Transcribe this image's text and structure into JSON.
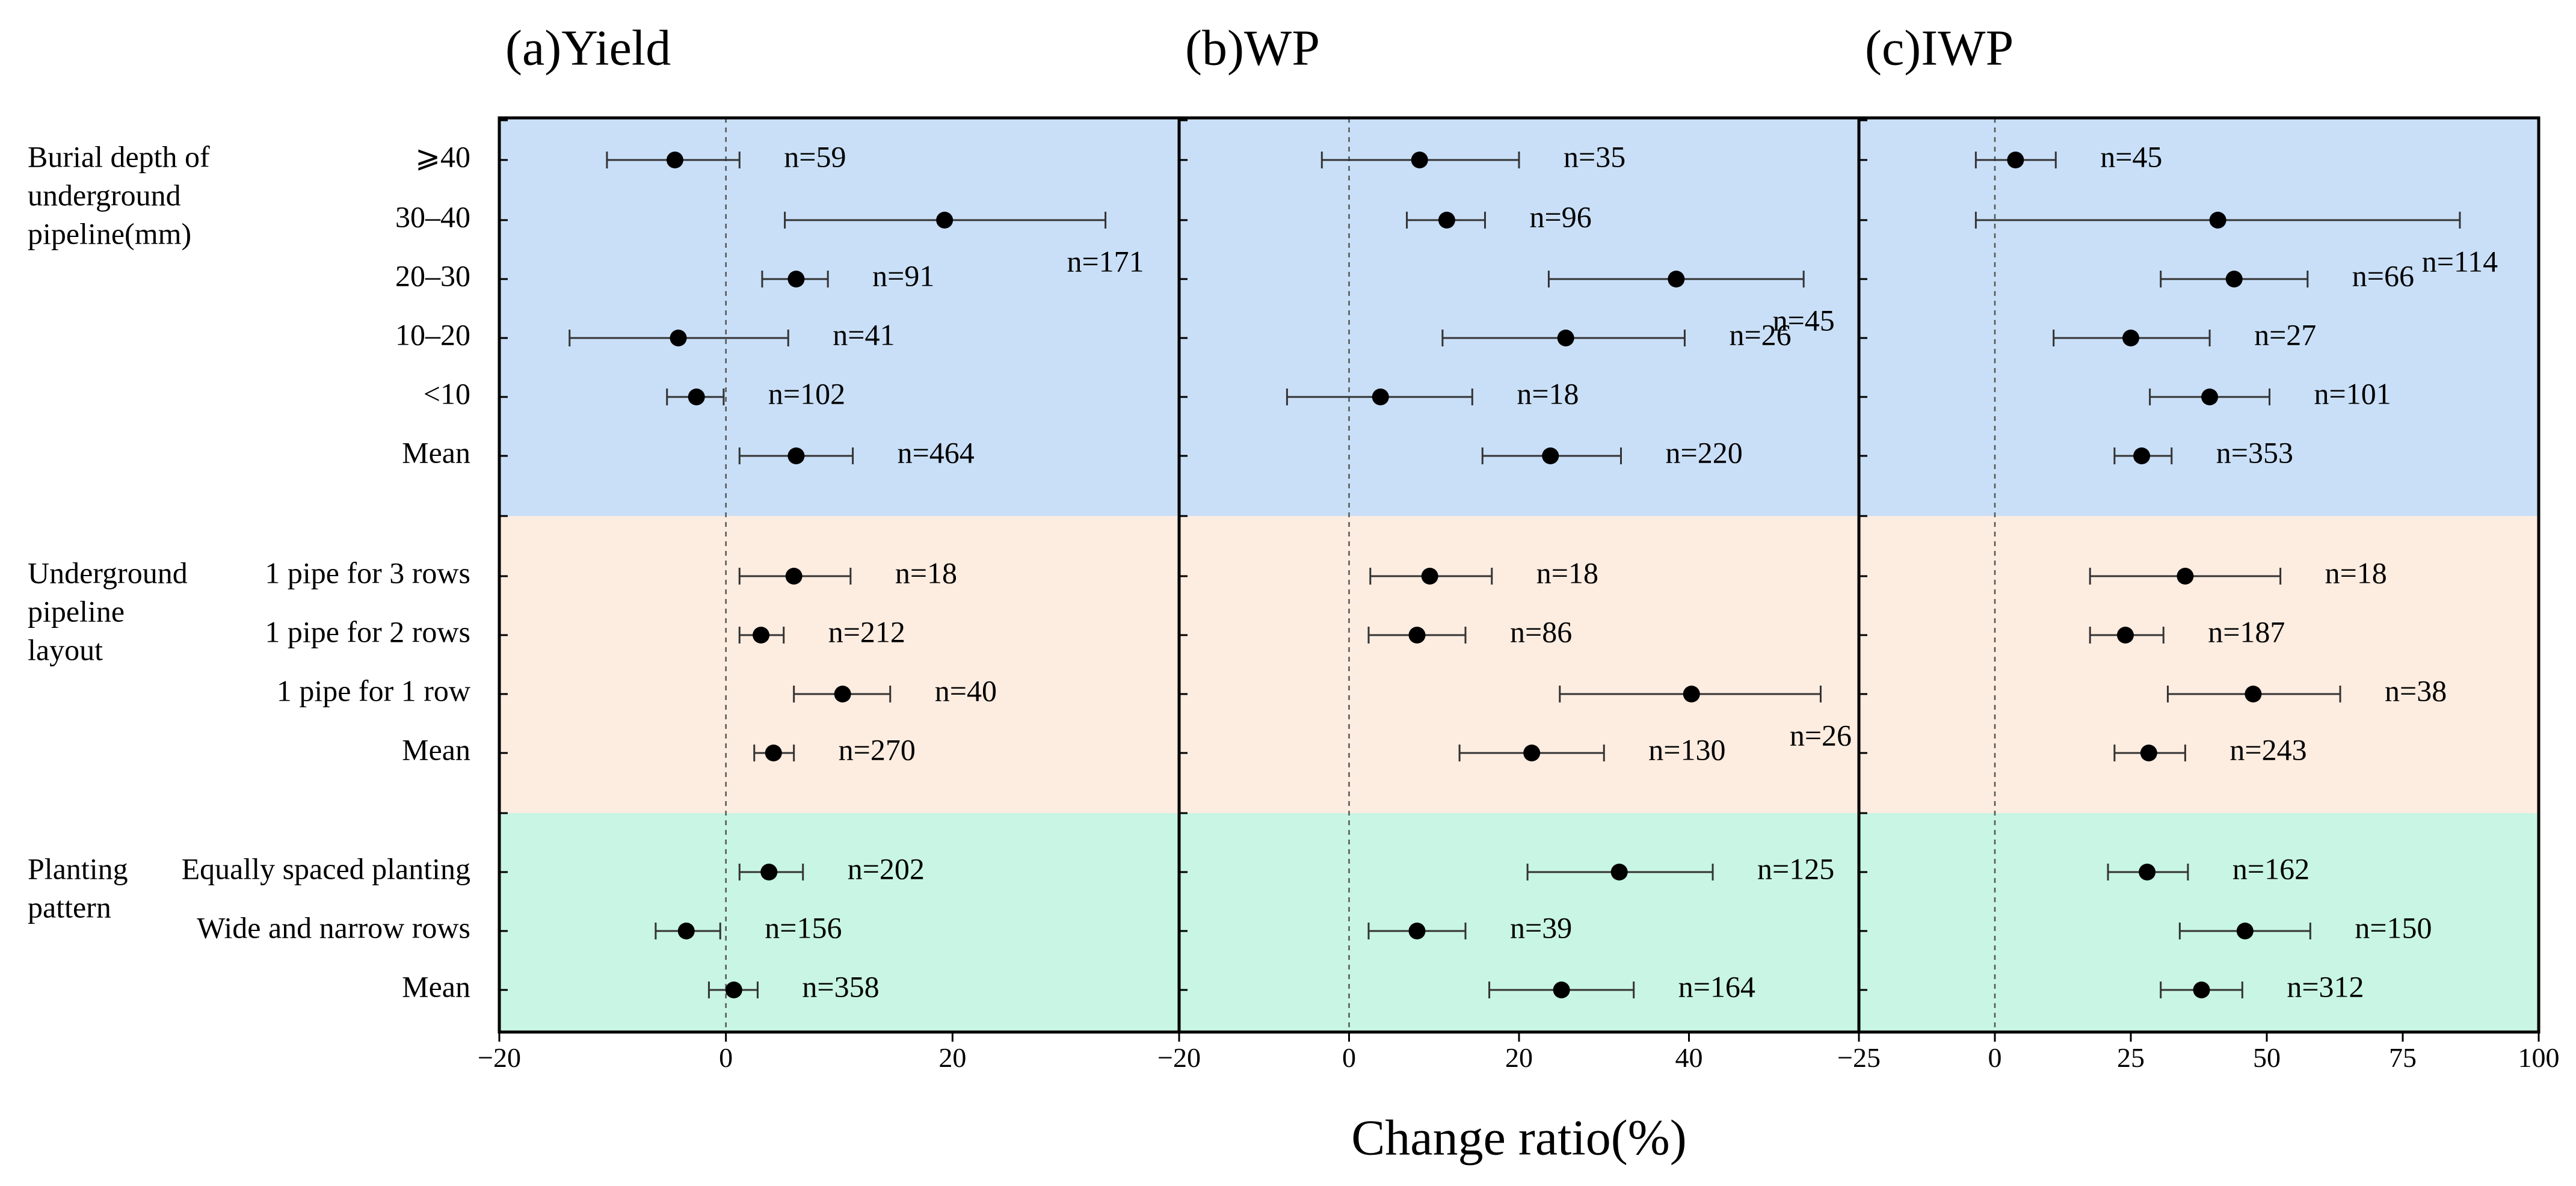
{
  "chart_data": {
    "type": "forest",
    "xlabel": "Change ratio(%)",
    "groups": [
      {
        "key": "burial",
        "label_lines": [
          "Burial depth of",
          "underground",
          "pipeline(mm)"
        ],
        "color": "#c9dff7",
        "rows": [
          "⩾40",
          "30–40",
          "20–30",
          "10–20",
          "<10",
          "Mean"
        ]
      },
      {
        "key": "layout",
        "label_lines": [
          "Underground",
          "pipeline",
          "layout"
        ],
        "color": "#fdece0",
        "rows": [
          "1 pipe for 3 rows",
          "1 pipe for 2 rows",
          "1 pipe for 1 row",
          "Mean"
        ]
      },
      {
        "key": "pattern",
        "label_lines": [
          "Planting",
          "pattern"
        ],
        "color": "#c8f5e4",
        "rows": [
          "Equally spaced planting",
          "Wide and narrow rows",
          "Mean"
        ]
      }
    ],
    "panels": [
      {
        "title": "(a)Yield",
        "xlim": [
          -20,
          40
        ],
        "ticks": [
          -20,
          0,
          20
        ],
        "tick_labels": [
          "−20",
          "0",
          "20"
        ],
        "points": [
          {
            "est": -4.5,
            "lo": -10.5,
            "hi": 1.2,
            "n": "n=59"
          },
          {
            "est": 19.3,
            "lo": 5.2,
            "hi": 33.5,
            "n": "n=171"
          },
          {
            "est": 6.2,
            "lo": 3.2,
            "hi": 9.0,
            "n": "n=91"
          },
          {
            "est": -4.2,
            "lo": -13.8,
            "hi": 5.5,
            "n": "n=41"
          },
          {
            "est": -2.6,
            "lo": -5.2,
            "hi": -0.2,
            "n": "n=102"
          },
          {
            "est": 6.2,
            "lo": 1.2,
            "hi": 11.2,
            "n": "n=464"
          },
          {
            "est": 6.0,
            "lo": 1.2,
            "hi": 11.0,
            "n": "n=18"
          },
          {
            "est": 3.1,
            "lo": 1.2,
            "hi": 5.1,
            "n": "n=212"
          },
          {
            "est": 10.3,
            "lo": 6.0,
            "hi": 14.5,
            "n": "n=40"
          },
          {
            "est": 4.2,
            "lo": 2.5,
            "hi": 6.0,
            "n": "n=270"
          },
          {
            "est": 3.8,
            "lo": 1.2,
            "hi": 6.8,
            "n": "n=202"
          },
          {
            "est": -3.5,
            "lo": -6.2,
            "hi": -0.5,
            "n": "n=156"
          },
          {
            "est": 0.7,
            "lo": -1.5,
            "hi": 2.8,
            "n": "n=358"
          }
        ]
      },
      {
        "title": "(b)WP",
        "xlim": [
          -20,
          60
        ],
        "ticks": [
          -20,
          0,
          20,
          40
        ],
        "tick_labels": [
          "−20",
          "0",
          "20",
          "40"
        ],
        "points": [
          {
            "est": 8.3,
            "lo": -3.2,
            "hi": 20.0,
            "n": "n=35"
          },
          {
            "est": 11.5,
            "lo": 6.8,
            "hi": 16.0,
            "n": "n=96"
          },
          {
            "est": 38.5,
            "lo": 23.5,
            "hi": 53.5,
            "n": "n=45"
          },
          {
            "est": 25.5,
            "lo": 11.0,
            "hi": 39.5,
            "n": "n=26"
          },
          {
            "est": 3.7,
            "lo": -7.3,
            "hi": 14.5,
            "n": "n=18"
          },
          {
            "est": 23.7,
            "lo": 15.7,
            "hi": 32.0,
            "n": "n=220"
          },
          {
            "est": 9.5,
            "lo": 2.5,
            "hi": 16.8,
            "n": "n=18"
          },
          {
            "est": 8.0,
            "lo": 2.3,
            "hi": 13.7,
            "n": "n=86"
          },
          {
            "est": 40.3,
            "lo": 24.8,
            "hi": 55.5,
            "n": "n=26"
          },
          {
            "est": 21.5,
            "lo": 13.0,
            "hi": 30.0,
            "n": "n=130"
          },
          {
            "est": 31.8,
            "lo": 21.0,
            "hi": 42.8,
            "n": "n=125"
          },
          {
            "est": 8.0,
            "lo": 2.3,
            "hi": 13.7,
            "n": "n=39"
          },
          {
            "est": 25.0,
            "lo": 16.5,
            "hi": 33.5,
            "n": "n=164"
          }
        ]
      },
      {
        "title": "(c)IWP",
        "xlim": [
          -25,
          100
        ],
        "ticks": [
          -25,
          0,
          25,
          50,
          75,
          100
        ],
        "tick_labels": [
          "−25",
          "0",
          "25",
          "50",
          "75",
          "100"
        ],
        "points": [
          {
            "est": 3.8,
            "lo": -3.5,
            "hi": 11.2,
            "n": "n=45"
          },
          {
            "est": 41.0,
            "lo": -3.5,
            "hi": 85.5,
            "n": "n=114"
          },
          {
            "est": 44.0,
            "lo": 30.5,
            "hi": 57.5,
            "n": "n=66"
          },
          {
            "est": 25.0,
            "lo": 10.8,
            "hi": 39.5,
            "n": "n=27"
          },
          {
            "est": 39.5,
            "lo": 28.5,
            "hi": 50.5,
            "n": "n=101"
          },
          {
            "est": 27.0,
            "lo": 22.0,
            "hi": 32.5,
            "n": "n=353"
          },
          {
            "est": 35.0,
            "lo": 17.5,
            "hi": 52.5,
            "n": "n=18"
          },
          {
            "est": 24.0,
            "lo": 17.5,
            "hi": 31.0,
            "n": "n=187"
          },
          {
            "est": 47.5,
            "lo": 31.8,
            "hi": 63.5,
            "n": "n=38"
          },
          {
            "est": 28.3,
            "lo": 22.0,
            "hi": 35.0,
            "n": "n=243"
          },
          {
            "est": 28.0,
            "lo": 20.8,
            "hi": 35.5,
            "n": "n=162"
          },
          {
            "est": 46.0,
            "lo": 34.0,
            "hi": 58.0,
            "n": "n=150"
          },
          {
            "est": 38.0,
            "lo": 30.5,
            "hi": 45.5,
            "n": "n=312"
          }
        ]
      }
    ]
  }
}
